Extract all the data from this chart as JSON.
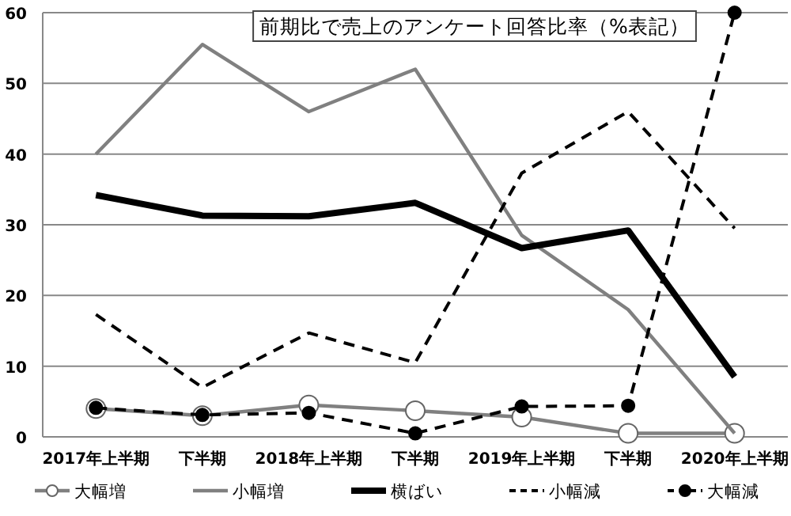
{
  "chart_data": {
    "type": "line",
    "title": "前期比で売上のアンケート回答比率（%表記）",
    "categories": [
      "2017年上半期",
      "下半期",
      "2018年上半期",
      "下半期",
      "2019年上半期",
      "下半期",
      "2020年上半期"
    ],
    "series": [
      {
        "name": "大幅増",
        "color": "#808080",
        "marker": "circle",
        "line_style": "solid",
        "values": [
          4,
          3,
          4.5,
          3.7,
          2.8,
          0.5,
          0.5
        ]
      },
      {
        "name": "小幅増",
        "color": "#808080",
        "marker": "none",
        "line_style": "solid",
        "values": [
          40,
          55.5,
          46,
          52,
          28.5,
          18,
          0.5
        ]
      },
      {
        "name": "横ばい",
        "color": "#000000",
        "marker": "none",
        "line_style": "solid",
        "values": [
          34.2,
          31.3,
          31.2,
          33.1,
          26.7,
          29.2,
          8.5
        ]
      },
      {
        "name": "小幅減",
        "color": "#000000",
        "marker": "none",
        "line_style": "dashed",
        "values": [
          17.3,
          7,
          14.7,
          10.5,
          37.3,
          46,
          29.5
        ]
      },
      {
        "name": "大幅減",
        "color": "#000000",
        "marker": "circle",
        "line_style": "dashed",
        "values": [
          4.1,
          3.1,
          3.4,
          0.5,
          4.3,
          4.4,
          60
        ]
      }
    ],
    "ylim": [
      0,
      60
    ],
    "yticks": [
      0,
      10,
      20,
      30,
      40,
      50,
      60
    ],
    "grid": "y",
    "legend": "bottom"
  }
}
